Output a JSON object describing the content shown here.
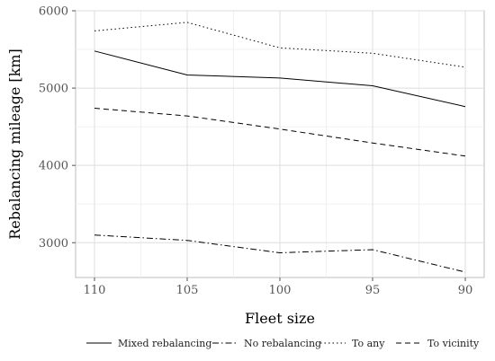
{
  "chart_data": {
    "type": "line",
    "xlabel": "Fleet size",
    "ylabel": "Rebalancing mileage [km]",
    "x": [
      110,
      105,
      100,
      95,
      90
    ],
    "x_tick_labels": [
      "110",
      "105",
      "100",
      "95",
      "90"
    ],
    "y_ticks": [
      3000,
      4000,
      5000,
      6000
    ],
    "y_tick_labels": [
      "3000",
      "4000",
      "5000",
      "6000"
    ],
    "ylim": [
      2550,
      6000
    ],
    "grid": true,
    "legend_position": "bottom",
    "series": [
      {
        "name": "Mixed rebalancing",
        "style": "solid",
        "color": "#000000",
        "values": [
          5480,
          5170,
          5130,
          5030,
          4760
        ]
      },
      {
        "name": "No rebalancing",
        "style": "dashdot",
        "color": "#000000",
        "values": [
          3100,
          3030,
          2870,
          2910,
          2620
        ]
      },
      {
        "name": "To any",
        "style": "dotted",
        "color": "#000000",
        "values": [
          5740,
          5850,
          5520,
          5450,
          5270
        ]
      },
      {
        "name": "To vicinity",
        "style": "dashed",
        "color": "#000000",
        "values": [
          4740,
          4640,
          4470,
          4290,
          4120
        ]
      }
    ]
  }
}
